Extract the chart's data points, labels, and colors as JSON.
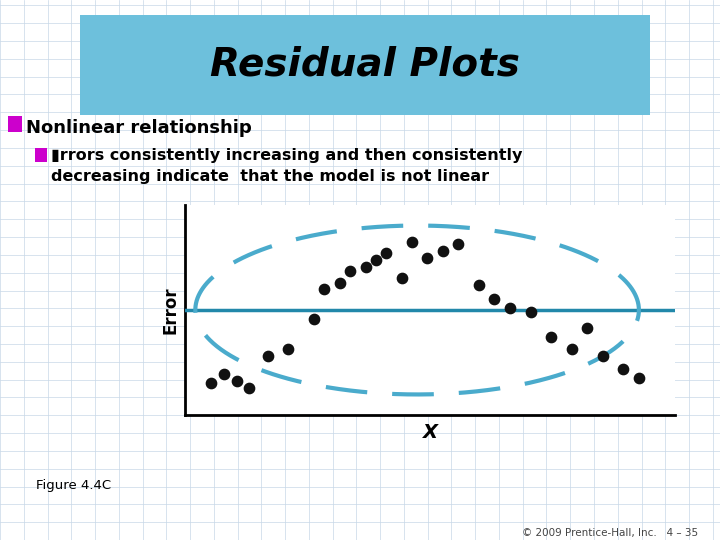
{
  "title": "Residual Plots",
  "title_bg_color": "#6DC0DC",
  "bg_color": "#FFFFFF",
  "grid_color": "#C8D8E8",
  "bullet_color": "#CC00CC",
  "text1": "Nonlinear relationship",
  "text2_line1": "▮rrors consistently increasing and then consistently",
  "text2_line2": "decreasing indicate  that the model is not linear",
  "xlabel": "X",
  "ylabel": "Error",
  "hline_color": "#2288AA",
  "dashed_color": "#4AABCC",
  "dot_color": "#111111",
  "figure_label": "Figure 4.4C",
  "copyright": "© 2009 Prentice-Hall, Inc.   4 – 35",
  "scatter_x": [
    1.0,
    1.25,
    1.5,
    1.75,
    2.1,
    2.5,
    3.0,
    3.2,
    3.5,
    3.7,
    4.0,
    4.2,
    4.4,
    4.7,
    4.9,
    5.2,
    5.5,
    5.8,
    6.2,
    6.5,
    6.8,
    7.2,
    7.6,
    8.0,
    8.3,
    8.6,
    9.0,
    9.3
  ],
  "scatter_y": [
    -1.6,
    -1.4,
    -1.55,
    -1.7,
    -1.0,
    -0.85,
    -0.2,
    0.45,
    0.6,
    0.85,
    0.95,
    1.1,
    1.25,
    0.7,
    1.5,
    1.15,
    1.3,
    1.45,
    0.55,
    0.25,
    0.05,
    -0.05,
    -0.6,
    -0.85,
    -0.4,
    -1.0,
    -1.3,
    -1.5
  ],
  "xlim": [
    0.5,
    10.0
  ],
  "ylim": [
    -2.3,
    2.3
  ]
}
